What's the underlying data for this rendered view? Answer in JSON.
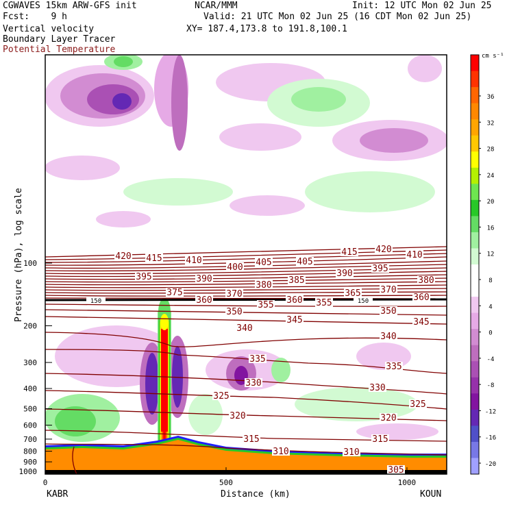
{
  "header": {
    "line1_left": "CGWAVES 15km ARW-GFS init",
    "line1_center": "NCAR/MMM",
    "line1_right": "Init: 12 UTC Mon 02 Jun 25",
    "line2_left": "Fcst:    9 h",
    "line2_right": "Valid: 21 UTC Mon 02 Jun 25 (16 CDT Mon 02 Jun 25)",
    "line3_left": "Vertical velocity",
    "line3_right": "XY= 187.4,173.8 to 191.8,100.1",
    "line4_left": "Boundary Layer Tracer",
    "line5_left": "Potential Temperature"
  },
  "colors": {
    "theta": "#800000",
    "terrain": "#ff8c00",
    "frame": "#000000"
  },
  "chart_data": {
    "type": "heatmap",
    "xlabel": "Distance (km)",
    "ylabel": "Pressure (hPa), log scale",
    "x_ticks": [
      "0",
      "500",
      "1000"
    ],
    "x_tick_values": [
      0,
      500,
      1000
    ],
    "xlim": [
      0,
      1110
    ],
    "y_ticks": [
      "100",
      "200",
      "300",
      "400",
      "500",
      "600",
      "700",
      "800",
      "900",
      "1000"
    ],
    "y_tick_values": [
      100,
      200,
      300,
      400,
      500,
      600,
      700,
      800,
      900,
      1000
    ],
    "y_scale": "log",
    "endpoints": {
      "left": "KABR",
      "right": "KOUN"
    },
    "colorbar": {
      "unit": "cm s⁻¹",
      "labels": [
        "36",
        "32",
        "28",
        "24",
        "20",
        "16",
        "12",
        "8",
        "4",
        "0",
        "-4",
        "-8",
        "-12",
        "-16",
        "-20"
      ],
      "colors": [
        "#ff0000",
        "#ff3300",
        "#ff6600",
        "#ff8800",
        "#ffa500",
        "#ffc800",
        "#ffff00",
        "#b4f000",
        "#6ee650",
        "#28c828",
        "#64dc64",
        "#a0f0a0",
        "#d2fad2",
        "#ffffff",
        "#ffffff",
        "#f0c8f0",
        "#e6aae6",
        "#d28cd2",
        "#be6ebe",
        "#aa50b4",
        "#9632aa",
        "#8214a0",
        "#6428b4",
        "#5050c8",
        "#7878e6",
        "#a0a0ff"
      ]
    },
    "theta_labels": [
      {
        "v": "420",
        "x": 180,
        "y": 375
      },
      {
        "v": "415",
        "x": 225,
        "y": 378
      },
      {
        "v": "410",
        "x": 283,
        "y": 381
      },
      {
        "v": "415",
        "x": 510,
        "y": 369
      },
      {
        "v": "420",
        "x": 560,
        "y": 365
      },
      {
        "v": "410",
        "x": 605,
        "y": 373
      },
      {
        "v": "400",
        "x": 343,
        "y": 391
      },
      {
        "v": "405",
        "x": 385,
        "y": 384
      },
      {
        "v": "405",
        "x": 445,
        "y": 383
      },
      {
        "v": "395",
        "x": 210,
        "y": 405
      },
      {
        "v": "390",
        "x": 298,
        "y": 408
      },
      {
        "v": "390",
        "x": 503,
        "y": 400
      },
      {
        "v": "395",
        "x": 555,
        "y": 393
      },
      {
        "v": "380",
        "x": 385,
        "y": 417
      },
      {
        "v": "385",
        "x": 433,
        "y": 410
      },
      {
        "v": "380",
        "x": 622,
        "y": 410
      },
      {
        "v": "375",
        "x": 255,
        "y": 428
      },
      {
        "v": "370",
        "x": 342,
        "y": 430
      },
      {
        "v": "365",
        "x": 515,
        "y": 429
      },
      {
        "v": "370",
        "x": 567,
        "y": 424
      },
      {
        "v": "360",
        "x": 298,
        "y": 439
      },
      {
        "v": "355",
        "x": 388,
        "y": 446
      },
      {
        "v": "360",
        "x": 430,
        "y": 439
      },
      {
        "v": "355",
        "x": 473,
        "y": 443
      },
      {
        "v": "360",
        "x": 615,
        "y": 435
      },
      {
        "v": "350",
        "x": 342,
        "y": 456
      },
      {
        "v": "350",
        "x": 567,
        "y": 455
      },
      {
        "v": "345",
        "x": 430,
        "y": 468
      },
      {
        "v": "345",
        "x": 615,
        "y": 471
      },
      {
        "v": "340",
        "x": 357,
        "y": 480
      },
      {
        "v": "340",
        "x": 567,
        "y": 492
      },
      {
        "v": "335",
        "x": 376,
        "y": 525
      },
      {
        "v": "335",
        "x": 575,
        "y": 536
      },
      {
        "v": "330",
        "x": 370,
        "y": 560
      },
      {
        "v": "330",
        "x": 551,
        "y": 567
      },
      {
        "v": "325",
        "x": 323,
        "y": 579
      },
      {
        "v": "325",
        "x": 610,
        "y": 591
      },
      {
        "v": "320",
        "x": 347,
        "y": 608
      },
      {
        "v": "320",
        "x": 567,
        "y": 611
      },
      {
        "v": "315",
        "x": 367,
        "y": 642
      },
      {
        "v": "315",
        "x": 555,
        "y": 642
      },
      {
        "v": "310",
        "x": 410,
        "y": 660
      },
      {
        "v": "310",
        "x": 513,
        "y": 661
      },
      {
        "v": "305",
        "x": 578,
        "y": 687
      }
    ],
    "tracer_labels": [
      {
        "v": "150",
        "x": 140,
        "y": 439
      },
      {
        "v": "150",
        "x": 530,
        "y": 439
      }
    ]
  }
}
